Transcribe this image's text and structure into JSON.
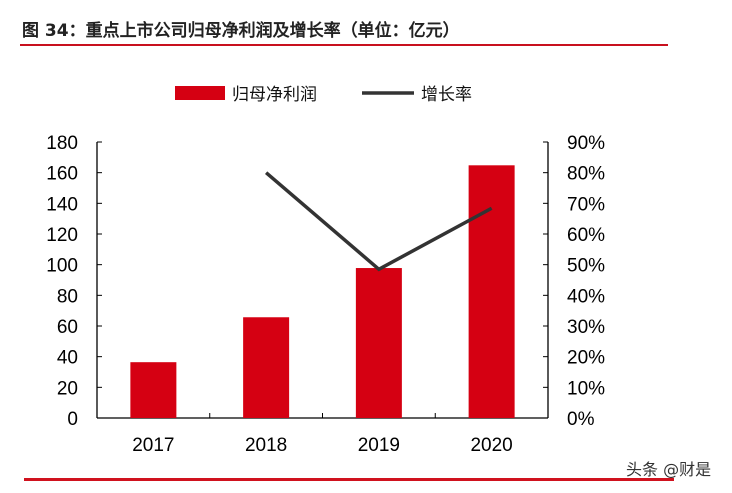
{
  "title": "图 34：重点上市公司归母净利润及增长率（单位：亿元）",
  "watermark": "头条 @财是",
  "colors": {
    "bar": "#d50012",
    "line": "#333333",
    "rule": "#c8101e"
  },
  "chart_data": {
    "type": "bar",
    "categories": [
      "2017",
      "2018",
      "2019",
      "2020"
    ],
    "series": [
      {
        "name": "归母净利润",
        "type": "bar",
        "axis": "left",
        "values": [
          36.4,
          65.7,
          97.8,
          164.8
        ]
      },
      {
        "name": "增长率",
        "type": "line",
        "axis": "right",
        "values": [
          null,
          80.0,
          48.5,
          68.4
        ]
      }
    ],
    "y_left": {
      "ylim": [
        0,
        180
      ],
      "ticks": [
        "0",
        "20",
        "40",
        "60",
        "80",
        "100",
        "120",
        "140",
        "160",
        "180"
      ]
    },
    "y_right": {
      "ylim": [
        0,
        90
      ],
      "ticks": [
        "0%",
        "10%",
        "20%",
        "30%",
        "40%",
        "50%",
        "60%",
        "70%",
        "80%",
        "90%"
      ]
    },
    "legend_position": "top",
    "grid": false
  }
}
